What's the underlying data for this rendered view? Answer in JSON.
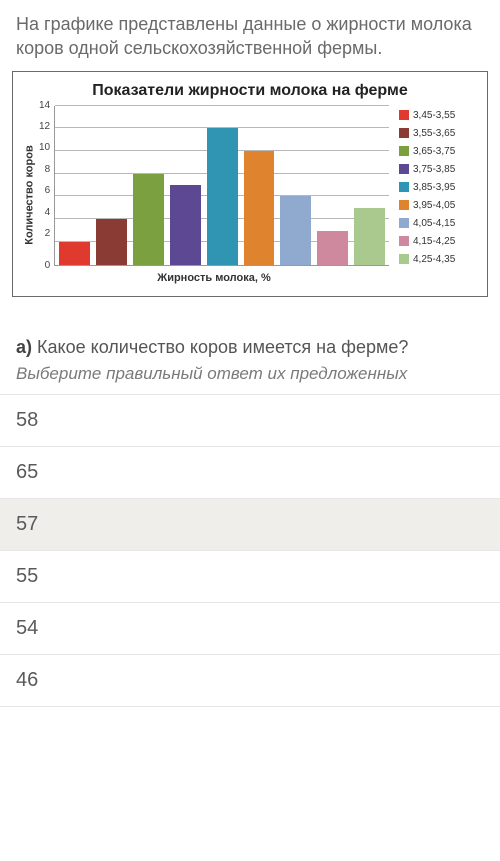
{
  "intro": "На графике представлены данные о жирности молока коров одной сельскохозяйственной фермы.",
  "chart": {
    "type": "bar",
    "title": "Показатели жирности молока на ферме",
    "xlabel": "Жирность молока, %",
    "ylabel": "Количество коров",
    "ylim": [
      0,
      14
    ],
    "ytick_step": 2,
    "yticks": [
      "14",
      "12",
      "10",
      "8",
      "6",
      "4",
      "2",
      "0"
    ],
    "grid_color": "#b8b8b8",
    "background_color": "#ffffff",
    "bar_width": 0.78,
    "label_fontsize": 11,
    "title_fontsize": 16,
    "series": [
      {
        "label": "3,45-3,55",
        "value": 2,
        "color": "#e03a2e"
      },
      {
        "label": "3,55-3,65",
        "value": 4,
        "color": "#8a3b33"
      },
      {
        "label": "3,65-3,75",
        "value": 8,
        "color": "#7aa03f"
      },
      {
        "label": "3,75-3,85",
        "value": 7,
        "color": "#5d4893"
      },
      {
        "label": "3,85-3,95",
        "value": 12,
        "color": "#2f95b3"
      },
      {
        "label": "3,95-4,05",
        "value": 10,
        "color": "#e0832f"
      },
      {
        "label": "4,05-4,15",
        "value": 6,
        "color": "#8fa9cf"
      },
      {
        "label": "4,15-4,25",
        "value": 3,
        "color": "#cf899f"
      },
      {
        "label": "4,25-4,35",
        "value": 5,
        "color": "#a9c98f"
      }
    ]
  },
  "question_label": "а)",
  "question_text": " Какое количество коров имеется на ферме?",
  "prompt": "Выберите правильный ответ их предложенных",
  "options": [
    {
      "text": "58",
      "selected": false
    },
    {
      "text": "65",
      "selected": false
    },
    {
      "text": "57",
      "selected": true
    },
    {
      "text": "55",
      "selected": false
    },
    {
      "text": "54",
      "selected": false
    },
    {
      "text": "46",
      "selected": false
    }
  ]
}
